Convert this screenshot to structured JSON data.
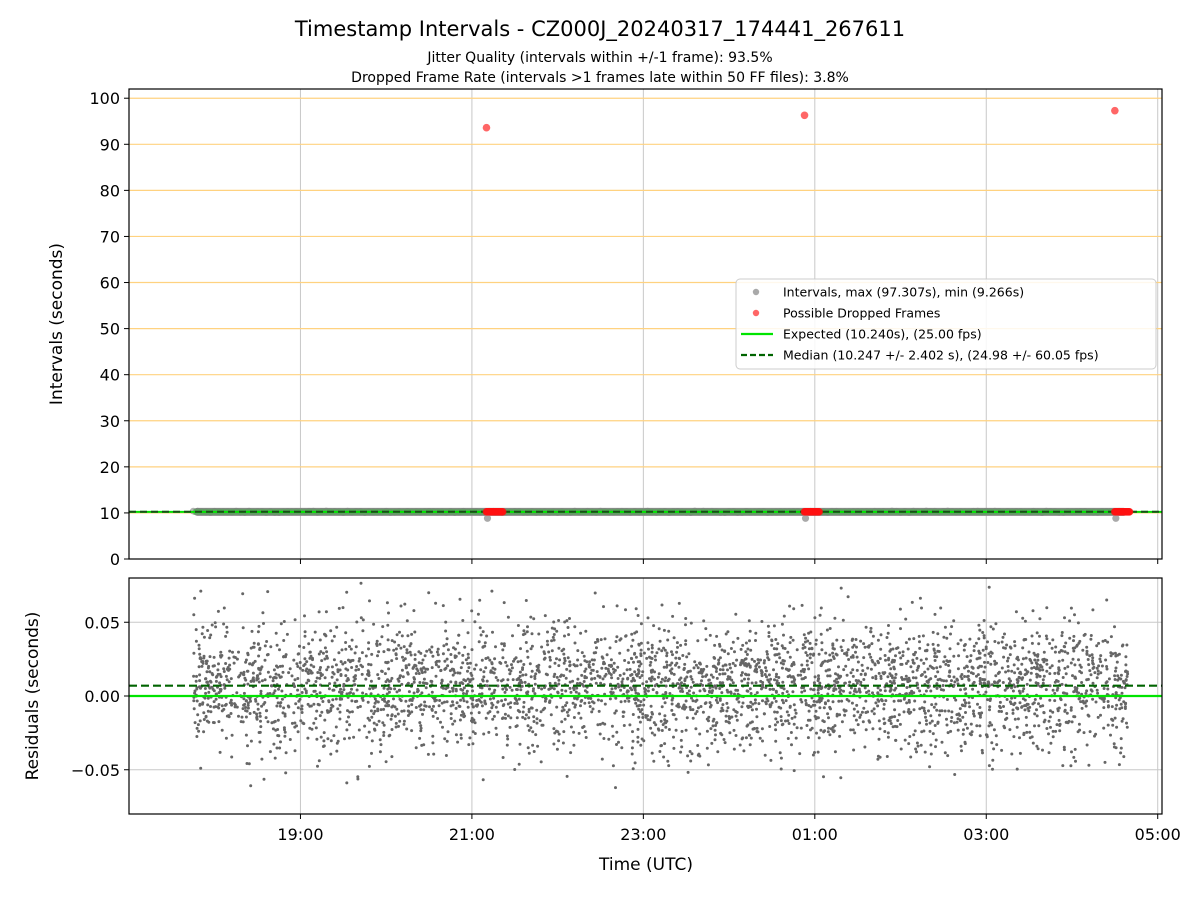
{
  "figure": {
    "title": "Timestamp Intervals - CZ000J_20240317_174441_267611",
    "subtitle_lines": [
      "Jitter Quality (intervals within +/-1 frame): 93.5%",
      "Dropped Frame Rate (intervals >1 frames late within 50 FF files): 3.8%"
    ]
  },
  "chart_data": [
    {
      "type": "scatter",
      "panel": "top",
      "ylabel": "Intervals (seconds)",
      "ylim": [
        0,
        102
      ],
      "yticks": [
        0,
        10,
        20,
        30,
        40,
        50,
        60,
        70,
        80,
        90,
        100
      ],
      "xlim_hours": [
        17.0,
        29.05
      ],
      "xticks_hours": [
        19,
        21,
        23,
        25,
        27,
        29
      ],
      "grid": "horizontal lines orange, vertical lines grey",
      "legend_position": "right-center",
      "legend": [
        {
          "label": "Intervals, max (97.307s), min (9.266s)",
          "kind": "marker",
          "color": "#a9a9a9"
        },
        {
          "label": "Possible Dropped Frames",
          "kind": "marker",
          "color": "#ff4040"
        },
        {
          "label": "Expected (10.240s), (25.00 fps)",
          "kind": "line",
          "color": "#00e400"
        },
        {
          "label": "Median (10.247 +/- 2.402 s), (24.98 +/- 60.05 fps)",
          "kind": "dashed",
          "color": "#006400"
        }
      ],
      "series": [
        {
          "name": "Intervals",
          "x_range_hours": [
            17.75,
            28.65
          ],
          "y_value": 10.24,
          "color": "#808080"
        },
        {
          "name": "Possible Dropped Frames",
          "color": "#ff2020",
          "outliers": [
            {
              "x_hours": 21.17,
              "y": 93.6
            },
            {
              "x_hours": 24.88,
              "y": 96.3
            },
            {
              "x_hours": 28.5,
              "y": 97.3
            }
          ],
          "clusters_hours": [
            [
              21.17,
              21.37
            ],
            [
              24.88,
              25.05
            ],
            [
              28.5,
              28.67
            ]
          ],
          "cluster_y": 10.24
        },
        {
          "name": "Expected",
          "y": 10.24,
          "color": "#00e400"
        },
        {
          "name": "Median",
          "y": 10.247,
          "color": "#006400"
        }
      ]
    },
    {
      "type": "scatter",
      "panel": "bottom",
      "ylabel": "Residuals (seconds)",
      "xlabel": "Time (UTC)",
      "ylim": [
        -0.08,
        0.08
      ],
      "yticks": [
        0.05,
        0.0,
        -0.05
      ],
      "ytick_labels": [
        "0.05",
        "0.00",
        "−0.05"
      ],
      "xticks_hours": [
        19,
        21,
        23,
        25,
        27,
        29
      ],
      "xtick_labels": [
        "19:00",
        "21:00",
        "23:00",
        "01:00",
        "03:00",
        "05:00"
      ],
      "expected_residual": 0.0,
      "median_residual": 0.007,
      "residual_points": {
        "x_range_hours": [
          17.75,
          28.65
        ],
        "approx_count": 3800,
        "y_spread_sigma": 0.022,
        "color": "#666666"
      }
    }
  ]
}
